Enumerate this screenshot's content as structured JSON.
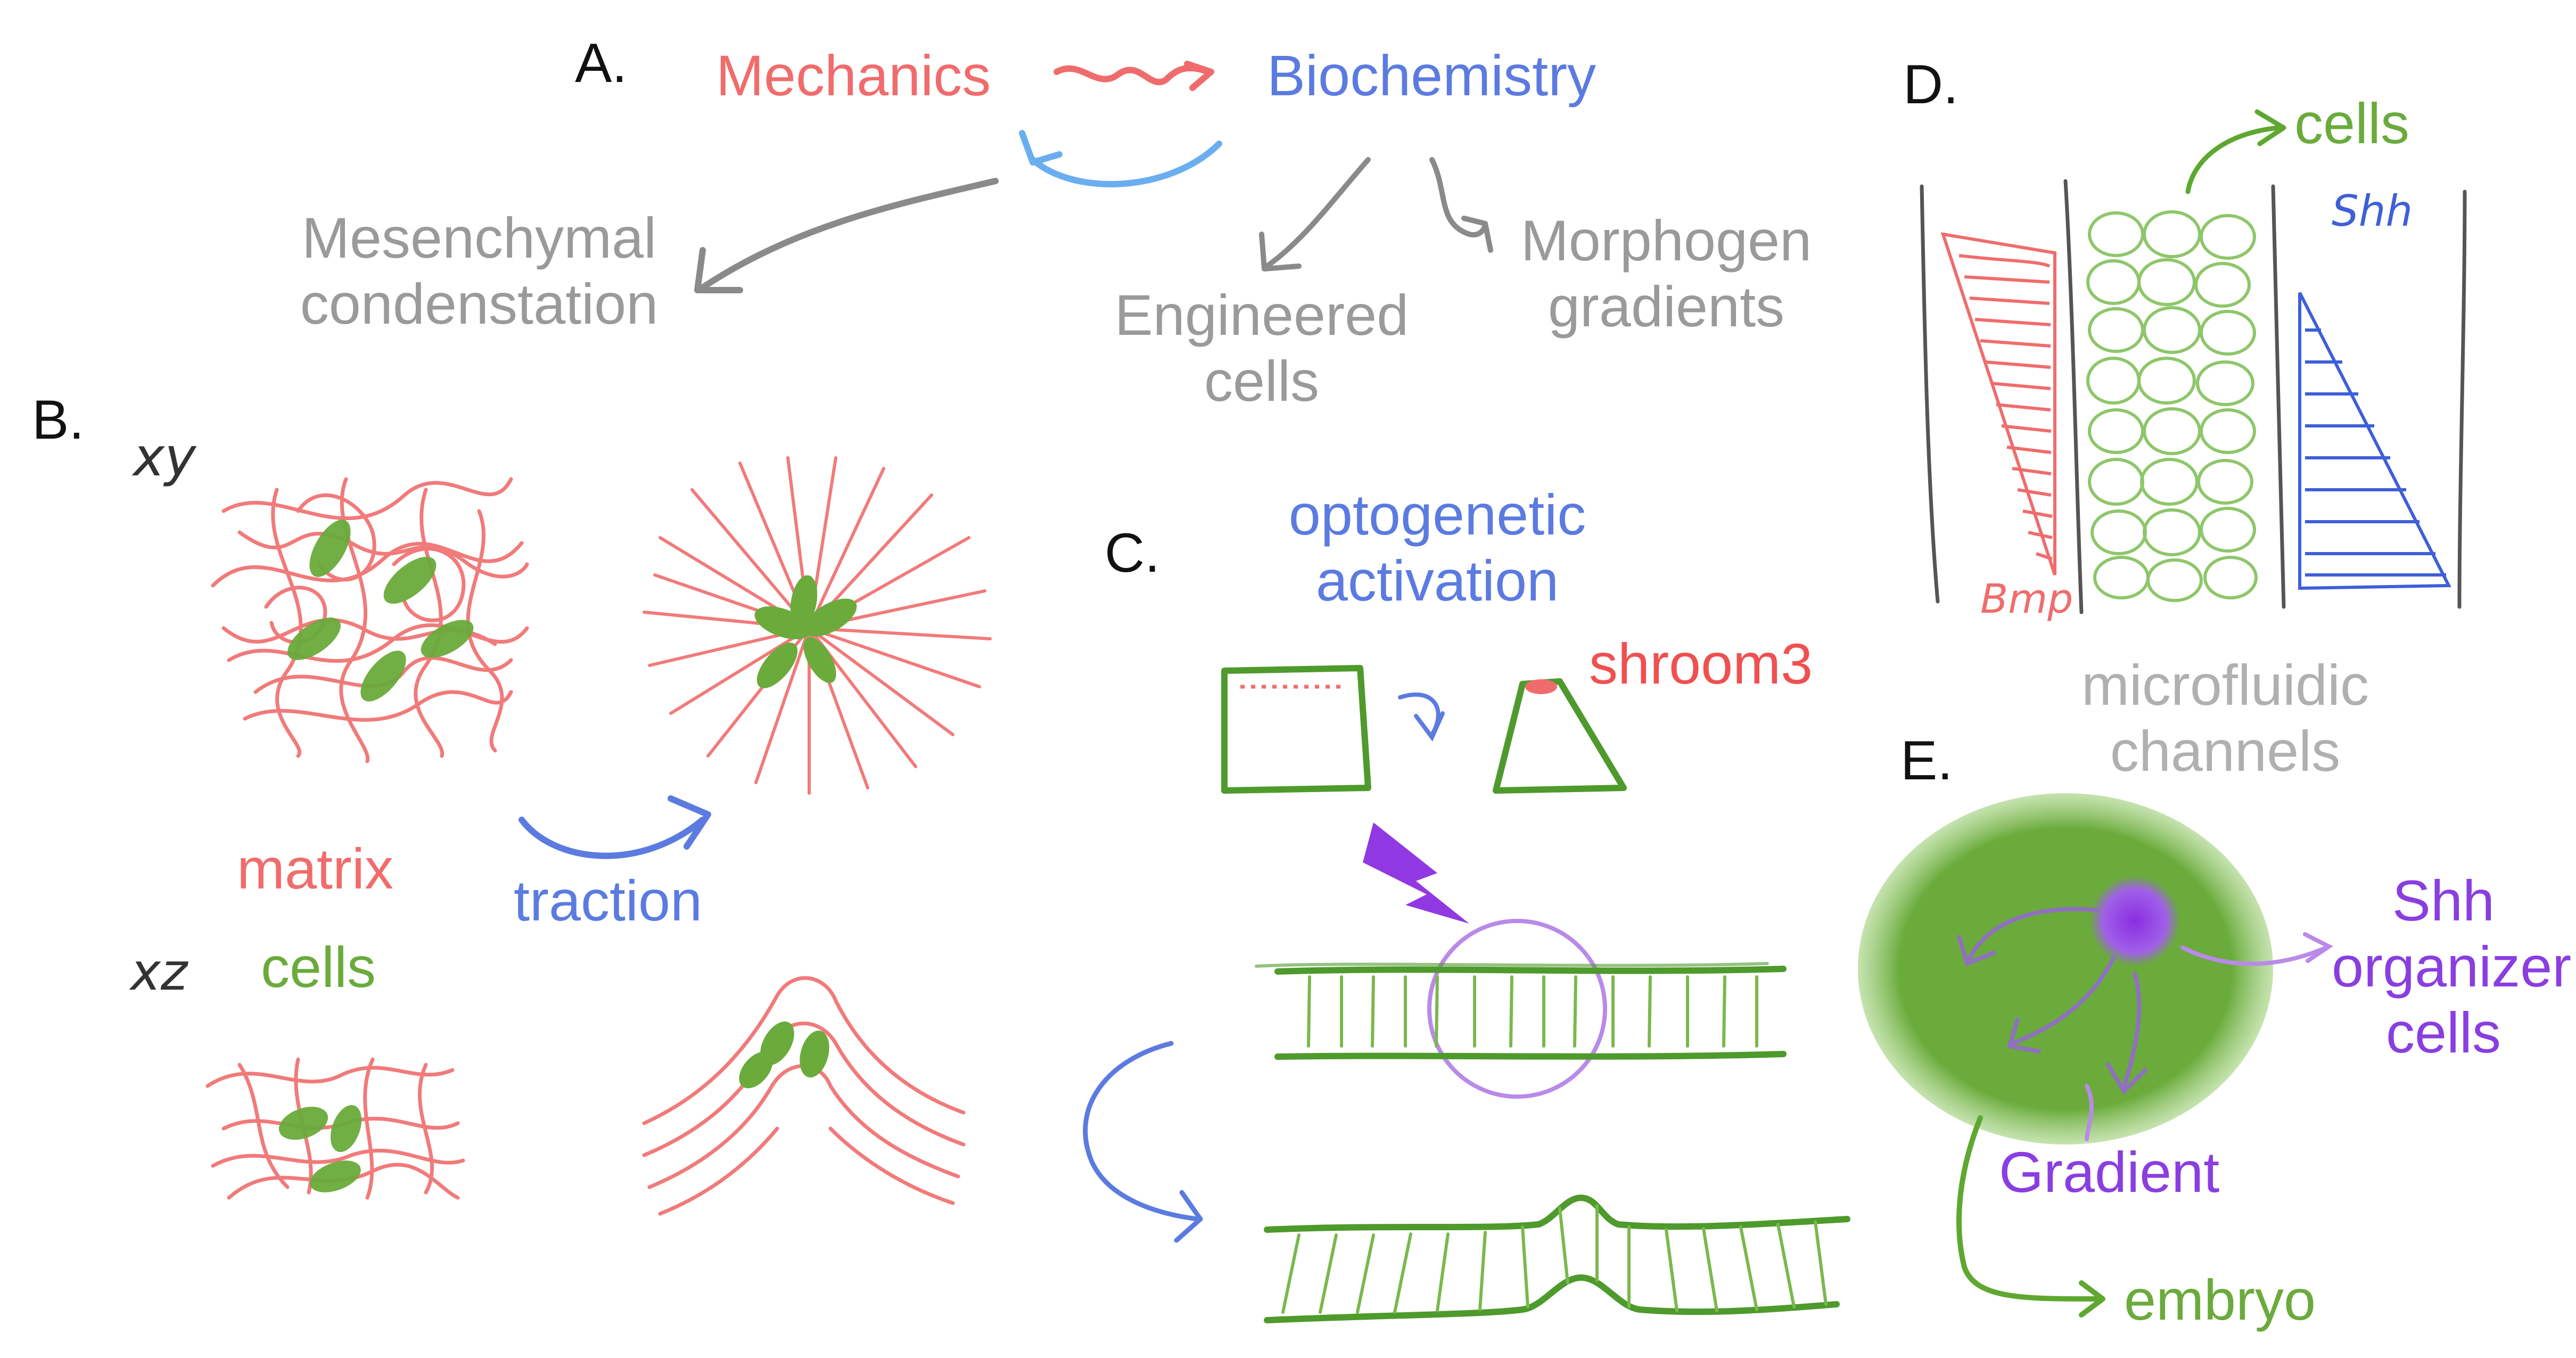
{
  "colors": {
    "red": "#f06c6c",
    "blue": "#5b7be0",
    "light_blue": "#6aaef0",
    "gray": "#9a9a9a",
    "green": "#6aab3c",
    "purple": "#8a3ee0",
    "black": "#111111"
  },
  "panel_a": {
    "letter": "A.",
    "mechanics": "Mechanics",
    "biochemistry": "Biochemistry",
    "mesenchymal_line1": "Mesenchymal",
    "mesenchymal_line2": "condenstation",
    "engineered_line1": "Engineered",
    "engineered_line2": "cells",
    "morphogen_line1": "Morphogen",
    "morphogen_line2": "gradients"
  },
  "panel_b": {
    "letter": "B.",
    "xy": "xy",
    "xz": "xz",
    "matrix": "matrix",
    "cells": "cells",
    "traction": "traction"
  },
  "panel_c": {
    "letter": "C.",
    "opto_line1": "optogenetic",
    "opto_line2": "activation",
    "shroom3": "shroom3"
  },
  "panel_d": {
    "letter": "D.",
    "cells": "cells",
    "shh": "Shh",
    "bmp": "Bmp",
    "micro_line1": "microfluidic",
    "micro_line2": "channels"
  },
  "panel_e": {
    "letter": "E.",
    "shh_line1": "Shh",
    "shh_line2": "organizer",
    "shh_line3": "cells",
    "gradient": "Gradient",
    "embryo": "embryo"
  }
}
